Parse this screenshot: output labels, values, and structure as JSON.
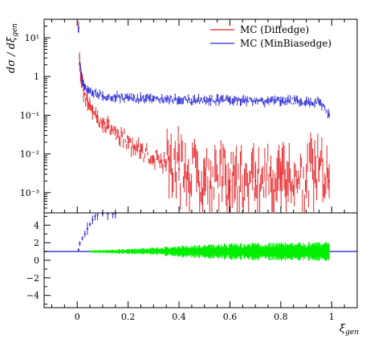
{
  "chart_data": [
    {
      "type": "scatter",
      "title": "",
      "xlabel": "ξ_gen",
      "ylabel": "dσ / dξ_gen",
      "x_ticks": [
        0,
        0.2,
        0.4,
        0.6,
        0.8,
        1
      ],
      "x_tick_labels": [
        "0",
        "0.2",
        "0.4",
        "0.6",
        "0.8",
        "1"
      ],
      "xlim": [
        -0.13,
        1.1
      ],
      "y_scale": "log",
      "ylim": [
        0.0003,
        30
      ],
      "y_ticks": [
        0.001,
        0.01,
        0.1,
        1,
        10
      ],
      "y_tick_labels": [
        "10⁻³",
        "10⁻²",
        "10⁻¹",
        "1",
        "10¹"
      ],
      "legend_position": "top-right",
      "series": [
        {
          "name": "MC (Diffedge)",
          "color": "#e8262b",
          "x": [
            0.005,
            0.01,
            0.015,
            0.02,
            0.025,
            0.03,
            0.04,
            0.05,
            0.06,
            0.08,
            0.1,
            0.12,
            0.15,
            0.2,
            0.25,
            0.3,
            0.35,
            0.4,
            0.5,
            0.6,
            0.7,
            0.8,
            0.9,
            0.95,
            0.99
          ],
          "y": [
            15,
            2.0,
            1.0,
            0.6,
            0.45,
            0.35,
            0.25,
            0.18,
            0.12,
            0.09,
            0.07,
            0.05,
            0.04,
            0.02,
            0.012,
            0.008,
            0.006,
            0.004,
            0.003,
            0.002,
            0.002,
            0.003,
            0.002,
            0.004,
            0.002
          ]
        },
        {
          "name": "MC (MinBiasedge)",
          "color": "#2b2bd8",
          "x": [
            0.005,
            0.01,
            0.015,
            0.02,
            0.025,
            0.03,
            0.04,
            0.05,
            0.06,
            0.08,
            0.1,
            0.12,
            0.15,
            0.2,
            0.25,
            0.3,
            0.35,
            0.4,
            0.5,
            0.6,
            0.7,
            0.8,
            0.9,
            0.95,
            0.99
          ],
          "y": [
            18,
            2.2,
            1.2,
            0.8,
            0.6,
            0.5,
            0.45,
            0.4,
            0.38,
            0.35,
            0.32,
            0.3,
            0.3,
            0.28,
            0.27,
            0.26,
            0.25,
            0.25,
            0.24,
            0.24,
            0.23,
            0.23,
            0.23,
            0.22,
            0.1
          ]
        }
      ]
    },
    {
      "type": "scatter",
      "title": "",
      "xlabel": "ξ_gen",
      "ylabel": "",
      "x_ticks": [
        0,
        0.2,
        0.4,
        0.6,
        0.8,
        1
      ],
      "xlim": [
        -0.13,
        1.1
      ],
      "ylim": [
        -5.4,
        5.4
      ],
      "y_ticks": [
        -4,
        -2,
        0,
        2,
        4
      ],
      "y_tick_labels": [
        "−4",
        "−2",
        "0",
        "2",
        "4"
      ],
      "reference_line": 1,
      "series": [
        {
          "color": "#2b2bd8",
          "x": [
            0.005,
            0.01,
            0.02,
            0.03,
            0.04,
            0.05,
            0.06,
            0.07,
            0.08,
            0.1,
            0.12,
            0.14,
            0.15
          ],
          "y": [
            1.2,
            1.9,
            2.5,
            3.0,
            3.6,
            4.1,
            4.6,
            5.0,
            5.2,
            5.3,
            5.3,
            5.3,
            5.3
          ]
        },
        {
          "color": "#00ee00",
          "x": [
            0.05,
            0.1,
            0.2,
            0.3,
            0.4,
            0.5,
            0.6,
            0.7,
            0.8,
            0.9,
            0.99
          ],
          "y": [
            1.0,
            1.0,
            1.0,
            1.05,
            1.0,
            1.0,
            1.0,
            1.0,
            1.0,
            1.0,
            1.0
          ],
          "spread": [
            0.1,
            0.15,
            0.25,
            0.35,
            0.55,
            0.7,
            0.8,
            0.85,
            0.9,
            0.9,
            0.9
          ]
        }
      ]
    }
  ]
}
